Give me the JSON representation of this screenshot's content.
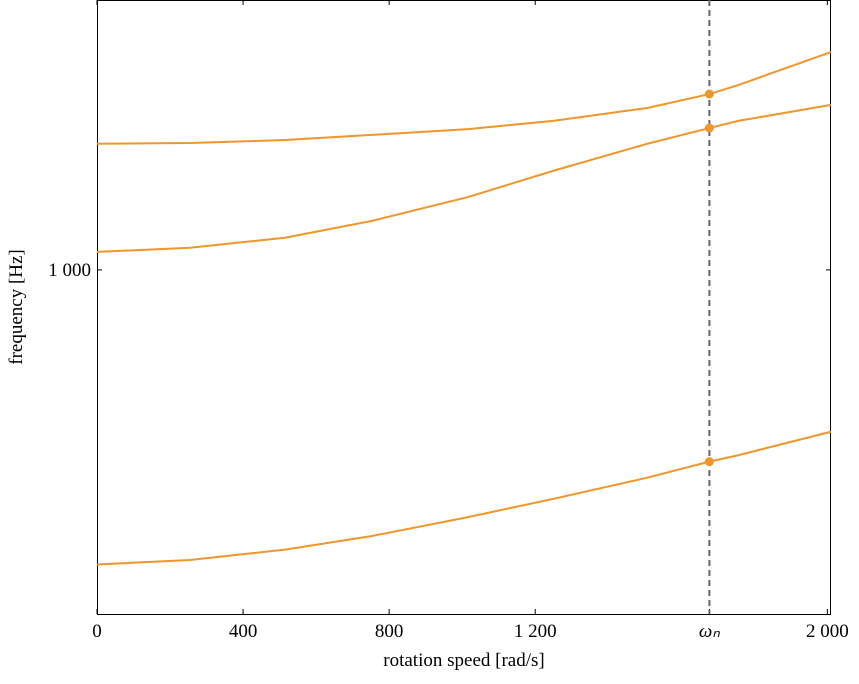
{
  "chart_data": {
    "type": "line",
    "xlabel": "rotation speed [rad/s]",
    "ylabel": "frequency [Hz]",
    "x": [
      0,
      255,
      515,
      753,
      1016,
      1249,
      1507,
      1677,
      1756,
      2010
    ],
    "series": [
      {
        "color": "#f0962a",
        "values": [
          1299,
          1301,
          1309,
          1323,
          1339,
          1362,
          1399,
          1440,
          1467,
          1571
        ]
      },
      {
        "color": "#f0962a",
        "values": [
          1038,
          1047,
          1069,
          1107,
          1163,
          1228,
          1299,
          1342,
          1362,
          1408
        ]
      },
      {
        "color": "#f0962a",
        "values": [
          543,
          548,
          560,
          576,
          599,
          622,
          650,
          672,
          681,
          715
        ]
      }
    ],
    "markers": {
      "x": 1677,
      "values": [
        1440,
        1342,
        672
      ],
      "color": "#f0962a"
    },
    "vline": 1677,
    "xlim": [
      0,
      2010
    ],
    "ylim": [
      490,
      1750
    ],
    "ylog": true,
    "xticks": [
      0,
      400,
      800,
      {
        "value": 1200,
        "label": "1 200"
      },
      {
        "value": 1677,
        "label": "ωₙ"
      },
      {
        "value": 2000,
        "label": "2 000"
      }
    ],
    "yticks": [
      {
        "value": 1000,
        "label": "1 000"
      }
    ]
  }
}
